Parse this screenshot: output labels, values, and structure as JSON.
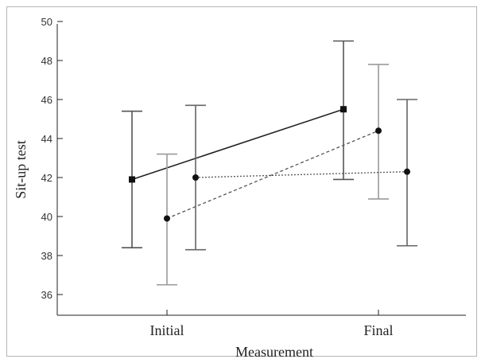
{
  "chart_data": {
    "type": "line",
    "xlabel": "Measurement",
    "ylabel": "Sit-up test",
    "categories": [
      "Initial",
      "Final"
    ],
    "ylim": [
      35,
      50
    ],
    "yticks": [
      36,
      38,
      40,
      42,
      44,
      46,
      48,
      50
    ],
    "grid": false,
    "series": [
      {
        "marker": "square",
        "line_style": "solid",
        "errorbar_color": "#555555",
        "values": [
          41.9,
          45.5
        ],
        "error_low": [
          38.4,
          41.9
        ],
        "error_high": [
          45.4,
          49.0
        ]
      },
      {
        "marker": "circle",
        "line_style": "dashed",
        "errorbar_color": "#9a9a9a",
        "values": [
          39.9,
          44.4
        ],
        "error_low": [
          36.5,
          40.9
        ],
        "error_high": [
          43.2,
          47.8
        ]
      },
      {
        "marker": "circle",
        "line_style": "dotted",
        "errorbar_color": "#666666",
        "values": [
          42.0,
          42.3
        ],
        "error_low": [
          38.3,
          38.5
        ],
        "error_high": [
          45.7,
          46.0
        ]
      }
    ]
  }
}
